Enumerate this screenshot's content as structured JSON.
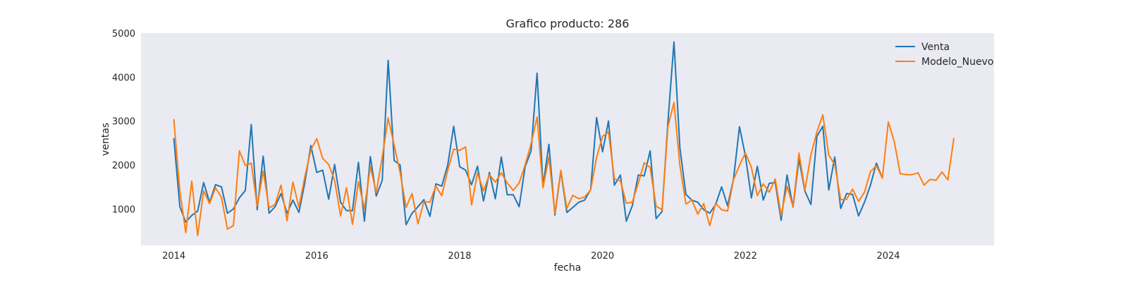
{
  "chart_data": {
    "type": "line",
    "title": "Grafico producto: 286",
    "xlabel": "fecha",
    "ylabel": "ventas",
    "xlim": [
      2013.54,
      2025.48
    ],
    "ylim": [
      170,
      5000
    ],
    "grid": false,
    "legend_position": "upper-right",
    "x_ticks": [
      2014,
      2016,
      2018,
      2020,
      2022,
      2024
    ],
    "x_tick_labels": [
      "2014",
      "2016",
      "2018",
      "2020",
      "2022",
      "2024"
    ],
    "y_ticks": [
      1000,
      2000,
      3000,
      4000,
      5000
    ],
    "y_tick_labels": [
      "1000",
      "2000",
      "3000",
      "4000",
      "5000"
    ],
    "colors": {
      "plot_bg": "#eaeaf2",
      "venta": "#1f77b4",
      "modelo": "#ff7f0e"
    },
    "series": [
      {
        "name": "Venta",
        "color": "#1f77b4",
        "x_start": 2014.0,
        "x_step": 0.083333,
        "values": [
          2600,
          1050,
          700,
          850,
          950,
          1600,
          1150,
          1550,
          1500,
          900,
          1000,
          1250,
          1420,
          2920,
          980,
          2200,
          900,
          1050,
          1350,
          900,
          1200,
          920,
          1600,
          2440,
          1830,
          1880,
          1220,
          2010,
          1150,
          960,
          960,
          2060,
          720,
          2190,
          1290,
          1650,
          4380,
          2100,
          2000,
          640,
          900,
          1050,
          1210,
          830,
          1570,
          1520,
          2000,
          2880,
          1960,
          1880,
          1550,
          1970,
          1180,
          1830,
          1230,
          2180,
          1320,
          1320,
          1050,
          1960,
          2320,
          4090,
          1520,
          2470,
          860,
          1860,
          920,
          1030,
          1150,
          1200,
          1440,
          3080,
          2300,
          3000,
          1540,
          1770,
          720,
          1070,
          1770,
          1750,
          2320,
          780,
          940,
          3000,
          4800,
          2390,
          1330,
          1200,
          1150,
          980,
          900,
          1100,
          1500,
          1070,
          1670,
          2870,
          2210,
          1250,
          1970,
          1200,
          1580,
          1600,
          740,
          1770,
          1040,
          2130,
          1400,
          1100,
          2650,
          2880,
          1430,
          2180,
          1010,
          1350,
          1330,
          840,
          1150,
          1540,
          2040,
          1700
        ]
      },
      {
        "name": "Modelo_Nuevo",
        "color": "#ff7f0e",
        "x_start": 2014.0,
        "x_step": 0.083333,
        "values": [
          3030,
          1400,
          460,
          1630,
          390,
          1410,
          1120,
          1480,
          1260,
          540,
          620,
          2320,
          1990,
          2040,
          1060,
          1860,
          1020,
          1100,
          1540,
          730,
          1610,
          1040,
          1730,
          2340,
          2600,
          2150,
          2010,
          1650,
          840,
          1480,
          650,
          1620,
          1000,
          1960,
          1370,
          2180,
          3070,
          2450,
          1830,
          1030,
          1350,
          660,
          1170,
          1150,
          1520,
          1300,
          1880,
          2360,
          2330,
          2410,
          1090,
          1820,
          1410,
          1780,
          1610,
          1820,
          1590,
          1420,
          1590,
          2000,
          2480,
          3090,
          1480,
          2180,
          900,
          1880,
          1010,
          1310,
          1230,
          1270,
          1430,
          2170,
          2650,
          2750,
          1680,
          1640,
          1130,
          1150,
          1580,
          2050,
          1940,
          1060,
          980,
          2880,
          3420,
          1990,
          1110,
          1200,
          880,
          1120,
          620,
          1130,
          980,
          950,
          1660,
          1990,
          2270,
          1950,
          1300,
          1570,
          1380,
          1680,
          850,
          1520,
          1050,
          2270,
          1430,
          2230,
          2750,
          3140,
          2220,
          2010,
          1210,
          1220,
          1450,
          1170,
          1380,
          1850,
          1980,
          1700,
          2980,
          2530,
          1800,
          1780,
          1780,
          1820,
          1540,
          1670,
          1650,
          1840,
          1660,
          2600
        ]
      }
    ]
  }
}
